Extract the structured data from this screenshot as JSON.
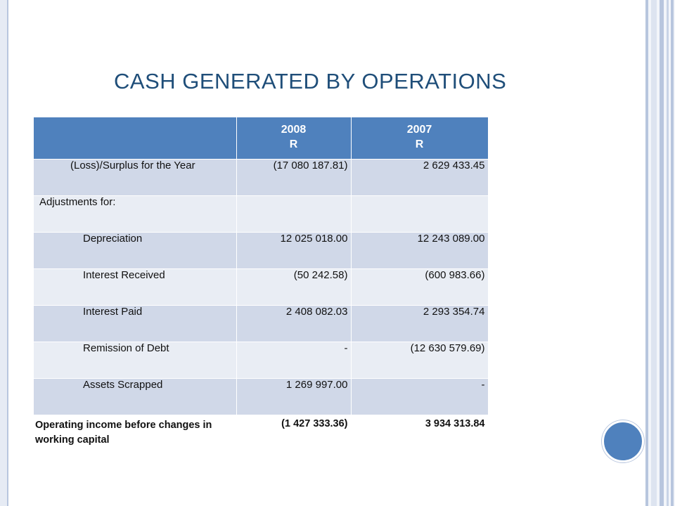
{
  "slide": {
    "title": "CASH GENERATED BY OPERATIONS"
  },
  "table": {
    "headers": {
      "col1": "",
      "col2_year": "2008",
      "col2_unit": "R",
      "col3_year": "2007",
      "col3_unit": "R"
    },
    "rows": [
      {
        "label": "(Loss)/Surplus for the Year",
        "v2008": "(17 080 187.81)",
        "v2007": "2 629 433.45"
      },
      {
        "label": "Adjustments for:",
        "v2008": "",
        "v2007": ""
      },
      {
        "label": "Depreciation",
        "v2008": "12 025 018.00",
        "v2007": "12 243 089.00"
      },
      {
        "label": "Interest Received",
        "v2008": "(50 242.58)",
        "v2007": "(600 983.66)"
      },
      {
        "label": "Interest Paid",
        "v2008": "2 408 082.03",
        "v2007": "2 293 354.74"
      },
      {
        "label": "Remission of Debt",
        "v2008": "-",
        "v2007": "(12 630 579.69)"
      },
      {
        "label": "Assets Scrapped",
        "v2008": "1 269 997.00",
        "v2007": "-"
      },
      {
        "label": "Operating income before changes in working capital",
        "v2008": "(1 427 333.36)",
        "v2007": "3 934 313.84"
      }
    ]
  },
  "colors": {
    "header_bg": "#4f81bd",
    "row_dark": "#d0d8e8",
    "row_light": "#e9edf4",
    "title": "#1f4e79"
  }
}
